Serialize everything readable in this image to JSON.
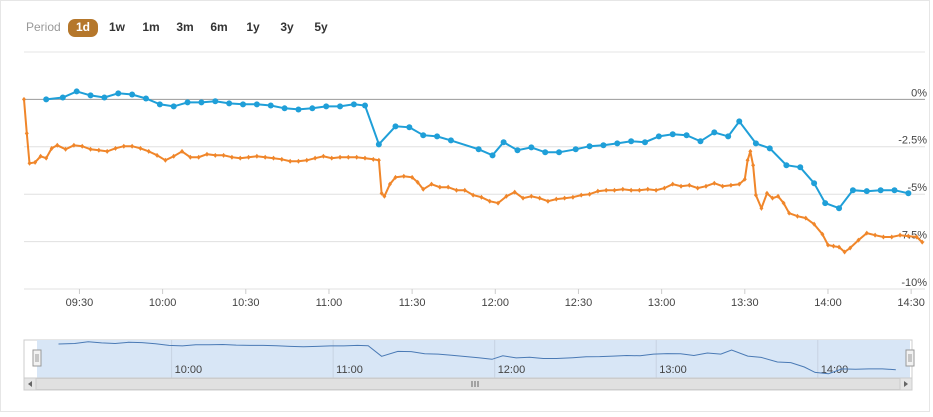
{
  "chart_data": {
    "type": "line",
    "period_label": "Period",
    "periods": [
      "1d",
      "1w",
      "1m",
      "3m",
      "6m",
      "1y",
      "3y",
      "5y"
    ],
    "selected_period": 0,
    "selected_color": "#b5772b",
    "xlim": [
      "09:10",
      "14:35"
    ],
    "xticks": [
      "09:30",
      "10:00",
      "10:30",
      "11:00",
      "11:30",
      "12:00",
      "12:30",
      "13:00",
      "13:30",
      "14:00",
      "14:30"
    ],
    "ylim": [
      -10,
      2.5
    ],
    "yticks": [
      {
        "value": 0,
        "label": "0%"
      },
      {
        "value": -2.5,
        "label": "-2.5%"
      },
      {
        "value": -5,
        "label": "-5%"
      },
      {
        "value": -7.5,
        "label": "-7.5%"
      },
      {
        "value": -10,
        "label": "-10%"
      }
    ],
    "grid": true,
    "navigator_ticks": [
      "10:00",
      "11:00",
      "12:00",
      "13:00",
      "14:00"
    ],
    "series": [
      {
        "color": "#1f9fd8",
        "marker": "circle",
        "x": [
          "09:18",
          "09:24",
          "09:29",
          "09:34",
          "09:39",
          "09:44",
          "09:49",
          "09:54",
          "09:59",
          "10:04",
          "10:09",
          "10:14",
          "10:19",
          "10:24",
          "10:29",
          "10:34",
          "10:39",
          "10:44",
          "10:49",
          "10:54",
          "10:59",
          "11:04",
          "11:09",
          "11:13",
          "11:18",
          "11:24",
          "11:29",
          "11:34",
          "11:39",
          "11:44",
          "11:54",
          "11:59",
          "12:03",
          "12:08",
          "12:13",
          "12:18",
          "12:23",
          "12:29",
          "12:34",
          "12:39",
          "12:44",
          "12:49",
          "12:54",
          "12:59",
          "13:04",
          "13:09",
          "13:14",
          "13:19",
          "13:24",
          "13:28",
          "13:34",
          "13:39",
          "13:45",
          "13:50",
          "13:55",
          "13:59",
          "14:04",
          "14:09",
          "14:14",
          "14:19",
          "14:24",
          "14:29"
        ],
        "values": [
          0,
          0.1,
          0.42,
          0.21,
          0.1,
          0.32,
          0.26,
          0.05,
          -0.26,
          -0.37,
          -0.16,
          -0.16,
          -0.1,
          -0.21,
          -0.26,
          -0.26,
          -0.32,
          -0.47,
          -0.53,
          -0.47,
          -0.37,
          -0.37,
          -0.26,
          -0.32,
          -2.37,
          -1.42,
          -1.47,
          -1.89,
          -1.95,
          -2.16,
          -2.63,
          -2.95,
          -2.26,
          -2.68,
          -2.53,
          -2.79,
          -2.79,
          -2.63,
          -2.47,
          -2.42,
          -2.32,
          -2.21,
          -2.26,
          -1.95,
          -1.84,
          -1.89,
          -2.21,
          -1.74,
          -1.95,
          -1.16,
          -2.32,
          -2.58,
          -3.47,
          -3.58,
          -4.42,
          -5.47,
          -5.74,
          -4.79,
          -4.84,
          -4.79,
          -4.79,
          -4.95
        ]
      },
      {
        "color": "#f0862a",
        "marker": "diamond",
        "x": [
          "09:10",
          "09:11",
          "09:12",
          "09:14",
          "09:16",
          "09:18",
          "09:20",
          "09:22",
          "09:25",
          "09:28",
          "09:31",
          "09:34",
          "09:37",
          "09:40",
          "09:43",
          "09:46",
          "09:49",
          "09:52",
          "09:55",
          "09:58",
          "10:01",
          "10:04",
          "10:07",
          "10:10",
          "10:13",
          "10:16",
          "10:19",
          "10:22",
          "10:25",
          "10:28",
          "10:31",
          "10:34",
          "10:37",
          "10:40",
          "10:43",
          "10:46",
          "10:49",
          "10:52",
          "10:55",
          "10:58",
          "11:01",
          "11:04",
          "11:07",
          "11:10",
          "11:13",
          "11:16",
          "11:18",
          "11:19",
          "11:20",
          "11:22",
          "11:24",
          "11:27",
          "11:30",
          "11:32",
          "11:34",
          "11:37",
          "11:40",
          "11:43",
          "11:46",
          "11:49",
          "11:52",
          "11:55",
          "11:58",
          "12:01",
          "12:04",
          "12:07",
          "12:10",
          "12:13",
          "12:16",
          "12:19",
          "12:22",
          "12:25",
          "12:28",
          "12:31",
          "12:34",
          "12:37",
          "12:40",
          "12:43",
          "12:46",
          "12:49",
          "12:52",
          "12:55",
          "12:58",
          "13:01",
          "13:04",
          "13:07",
          "13:10",
          "13:13",
          "13:16",
          "13:19",
          "13:22",
          "13:25",
          "13:28",
          "13:30",
          "13:31",
          "13:32",
          "13:33",
          "13:34",
          "13:36",
          "13:38",
          "13:40",
          "13:42",
          "13:44",
          "13:46",
          "13:49",
          "13:52",
          "13:55",
          "13:58",
          "14:00",
          "14:02",
          "14:04",
          "14:06",
          "14:08",
          "14:11",
          "14:14",
          "14:17",
          "14:20",
          "14:23",
          "14:26",
          "14:29",
          "14:32",
          "14:34"
        ],
        "values": [
          0,
          -1.79,
          -3.37,
          -3.32,
          -3.0,
          -3.1,
          -2.58,
          -2.42,
          -2.63,
          -2.42,
          -2.47,
          -2.63,
          -2.68,
          -2.74,
          -2.58,
          -2.47,
          -2.47,
          -2.58,
          -2.74,
          -2.95,
          -3.21,
          -3.0,
          -2.74,
          -3.05,
          -3.05,
          -2.89,
          -2.95,
          -2.95,
          -3.05,
          -3.1,
          -3.05,
          -3.0,
          -3.05,
          -3.1,
          -3.16,
          -3.26,
          -3.26,
          -3.21,
          -3.1,
          -3.0,
          -3.1,
          -3.05,
          -3.05,
          -3.05,
          -3.1,
          -3.16,
          -3.21,
          -4.95,
          -5.11,
          -4.47,
          -4.11,
          -4.05,
          -4.11,
          -4.37,
          -4.74,
          -4.47,
          -4.63,
          -4.63,
          -4.79,
          -4.79,
          -5.05,
          -5.16,
          -5.37,
          -5.47,
          -5.11,
          -4.89,
          -5.21,
          -5.11,
          -5.21,
          -5.37,
          -5.26,
          -5.21,
          -5.16,
          -5.05,
          -5.0,
          -4.84,
          -4.79,
          -4.79,
          -4.74,
          -4.79,
          -4.79,
          -4.74,
          -4.79,
          -4.68,
          -4.47,
          -4.58,
          -4.53,
          -4.68,
          -4.58,
          -4.42,
          -4.58,
          -4.53,
          -4.47,
          -4.21,
          -3.21,
          -2.74,
          -3.47,
          -5.05,
          -5.74,
          -4.95,
          -5.21,
          -5.11,
          -5.47,
          -6.0,
          -6.16,
          -6.26,
          -6.58,
          -7.11,
          -7.68,
          -7.74,
          -7.79,
          -8.05,
          -7.84,
          -7.42,
          -7.05,
          -7.16,
          -7.26,
          -7.26,
          -7.16,
          -7.21,
          -7.26,
          -7.53
        ]
      }
    ]
  }
}
